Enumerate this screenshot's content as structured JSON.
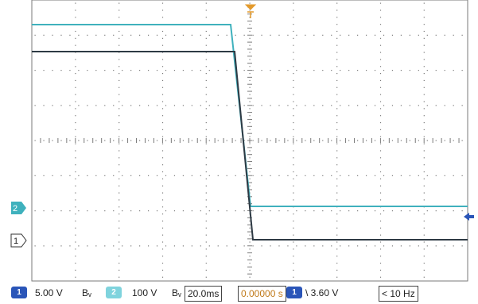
{
  "colors": {
    "grid": "#7a7a7a",
    "ch1": "#2e3a44",
    "ch2": "#3fb1bd",
    "trigger": "#e39a2c",
    "ch1_chip": "#2a55b8",
    "ch2_chip": "#7fd3dd",
    "offset_value": "#c07a1a"
  },
  "icons": {
    "trigger_position": "trigger-t-marker-icon",
    "trigger_level": "trigger-level-arrow-icon"
  },
  "markers": {
    "ch1": "1",
    "ch2": "2"
  },
  "statusbar": {
    "ch1_num": "1",
    "ch1_scale": "5.00 V",
    "ch1_bw": "Bᵥ",
    "ch2_num": "2",
    "ch2_scale": "100 V",
    "ch2_bw": "Bᵥ",
    "timebase": "20.0ms",
    "offset": "0.00000 s",
    "trig_src": "1",
    "trig_level": "\\ 3.60 V",
    "freq": "< 10 Hz"
  }
}
